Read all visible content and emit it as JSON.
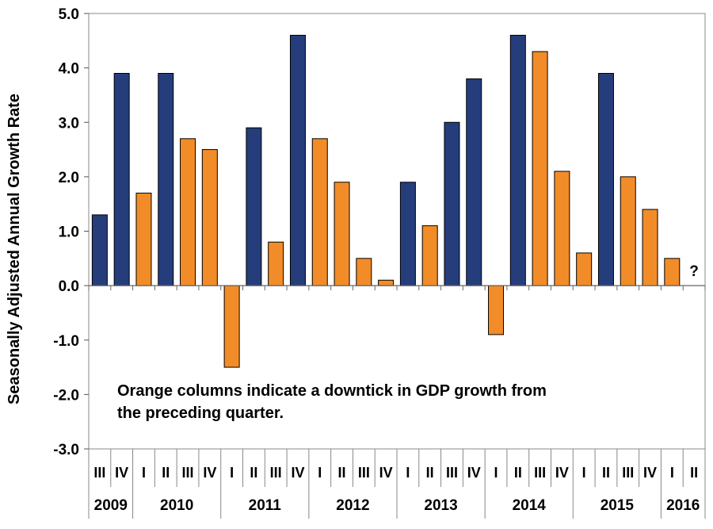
{
  "chart_data": {
    "type": "bar",
    "ylabel": "Seasonally Adjusted Annual Growth Rate",
    "ylim": [
      -3.0,
      5.0
    ],
    "yticks": [
      "5.0",
      "4.0",
      "3.0",
      "2.0",
      "1.0",
      "0.0",
      "-1.0",
      "-2.0",
      "-3.0"
    ],
    "annotation_lines": [
      "Orange columns indicate a downtick in GDP growth from",
      "the preceding quarter."
    ],
    "unknown_marker": "?",
    "colors": {
      "uptick": "#253d7b",
      "downtick": "#f28c28",
      "outline": "#000000"
    },
    "quarters": [
      "III",
      "IV",
      "I",
      "II",
      "III",
      "IV",
      "I",
      "II",
      "III",
      "IV",
      "I",
      "II",
      "III",
      "IV",
      "I",
      "II",
      "III",
      "IV",
      "I",
      "II",
      "III",
      "IV",
      "I",
      "II",
      "III",
      "IV",
      "I",
      "II"
    ],
    "years": [
      {
        "label": "2009",
        "quarters": 2
      },
      {
        "label": "2010",
        "quarters": 4
      },
      {
        "label": "2011",
        "quarters": 4
      },
      {
        "label": "2012",
        "quarters": 4
      },
      {
        "label": "2013",
        "quarters": 4
      },
      {
        "label": "2014",
        "quarters": 4
      },
      {
        "label": "2015",
        "quarters": 4
      },
      {
        "label": "2016",
        "quarters": 2
      }
    ],
    "values": [
      1.3,
      3.9,
      1.7,
      3.9,
      2.7,
      2.5,
      -1.5,
      2.9,
      0.8,
      4.6,
      2.7,
      1.9,
      0.5,
      0.1,
      1.9,
      1.1,
      3.0,
      3.8,
      -0.9,
      4.6,
      4.3,
      2.1,
      0.6,
      3.9,
      2.0,
      1.4,
      0.5,
      null
    ],
    "downtick": [
      false,
      false,
      true,
      false,
      true,
      true,
      true,
      false,
      true,
      false,
      true,
      true,
      true,
      true,
      false,
      true,
      false,
      false,
      true,
      false,
      true,
      true,
      true,
      false,
      true,
      true,
      true,
      false
    ]
  }
}
